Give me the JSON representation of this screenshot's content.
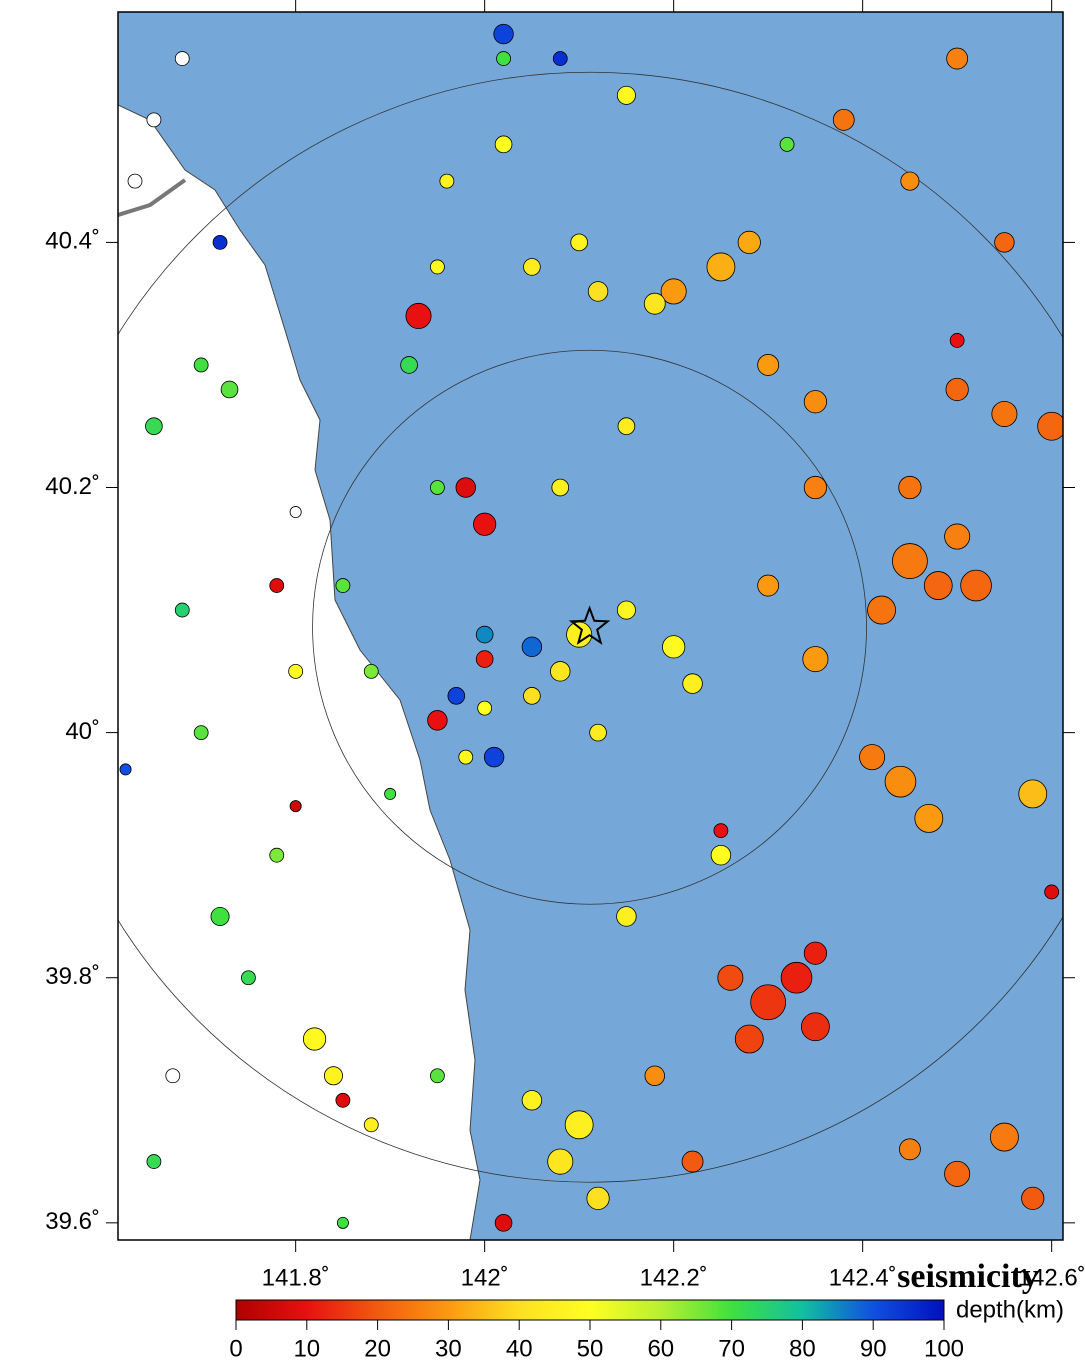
{
  "chart_data": {
    "type": "map",
    "title": "seismicity",
    "colorbar_label": "depth(km)",
    "xlim": [
      141.612,
      142.612
    ],
    "ylim": [
      39.586,
      40.588
    ],
    "xticks": [
      {
        "value": 141.8,
        "label": "141.8˚"
      },
      {
        "value": 142,
        "label": "142˚"
      },
      {
        "value": 142.2,
        "label": "142.2˚"
      },
      {
        "value": 142.4,
        "label": "142.4˚"
      },
      {
        "value": 142.6,
        "label": "142.6˚"
      }
    ],
    "yticks": [
      {
        "value": 39.6,
        "label": "39.6˚"
      },
      {
        "value": 39.8,
        "label": "39.8˚"
      },
      {
        "value": 40,
        "label": "40˚"
      },
      {
        "value": 40.2,
        "label": "40.2˚"
      },
      {
        "value": 40.4,
        "label": "40.4˚"
      }
    ],
    "colorbar_lim": [
      0,
      100
    ],
    "colorbar_ticks": [
      0,
      10,
      20,
      30,
      40,
      50,
      60,
      70,
      80,
      90,
      100
    ],
    "colormap": [
      {
        "value": 0,
        "color": "#b00000"
      },
      {
        "value": 10,
        "color": "#e81010"
      },
      {
        "value": 20,
        "color": "#f25a10"
      },
      {
        "value": 30,
        "color": "#fb9a10"
      },
      {
        "value": 40,
        "color": "#fde020"
      },
      {
        "value": 50,
        "color": "#ffff20"
      },
      {
        "value": 60,
        "color": "#b8f030"
      },
      {
        "value": 70,
        "color": "#40e040"
      },
      {
        "value": 80,
        "color": "#10c0a0"
      },
      {
        "value": 90,
        "color": "#1050e0"
      },
      {
        "value": 100,
        "color": "#0010c0"
      }
    ],
    "mainshock": {
      "lon": 142.111,
      "lat": 40.086
    },
    "events": [
      [
        142.45,
        40.14,
        25,
        4.5
      ],
      [
        142.48,
        40.12,
        22,
        4
      ],
      [
        142.42,
        40.1,
        24,
        4
      ],
      [
        142.5,
        40.16,
        26,
        3.8
      ],
      [
        142.52,
        40.12,
        22,
        4.2
      ],
      [
        142.44,
        39.96,
        28,
        4.2
      ],
      [
        142.47,
        39.93,
        30,
        4
      ],
      [
        142.41,
        39.98,
        25,
        3.8
      ],
      [
        142.58,
        39.95,
        35,
        4
      ],
      [
        142.6,
        40.25,
        22,
        4
      ],
      [
        142.55,
        40.26,
        24,
        3.8
      ],
      [
        142.5,
        40.28,
        22,
        3.6
      ],
      [
        142.35,
        40.27,
        28,
        3.6
      ],
      [
        142.3,
        40.3,
        30,
        3.5
      ],
      [
        142.25,
        40.38,
        33,
        4
      ],
      [
        142.2,
        40.36,
        30,
        3.8
      ],
      [
        142.28,
        40.4,
        32,
        3.6
      ],
      [
        142.3,
        39.78,
        15,
        4.5
      ],
      [
        142.33,
        39.8,
        12,
        4.2
      ],
      [
        142.28,
        39.75,
        17,
        4
      ],
      [
        142.35,
        39.76,
        14,
        4
      ],
      [
        142.26,
        39.8,
        18,
        3.8
      ],
      [
        142.55,
        39.67,
        25,
        4
      ],
      [
        142.5,
        39.64,
        22,
        3.8
      ],
      [
        142.58,
        39.62,
        20,
        3.6
      ],
      [
        142.45,
        39.66,
        26,
        3.5
      ],
      [
        142.38,
        40.5,
        24,
        3.5
      ],
      [
        142.5,
        40.55,
        26,
        3.5
      ],
      [
        142.45,
        40.45,
        28,
        3.3
      ],
      [
        142.55,
        40.4,
        22,
        3.4
      ],
      [
        142.35,
        40.06,
        30,
        3.8
      ],
      [
        142.3,
        40.12,
        30,
        3.5
      ],
      [
        142.35,
        40.2,
        26,
        3.6
      ],
      [
        142.45,
        40.2,
        24,
        3.6
      ],
      [
        142.22,
        39.65,
        20,
        3.5
      ],
      [
        142.18,
        39.72,
        28,
        3.4
      ],
      [
        142.1,
        40.08,
        45,
        3.8
      ],
      [
        142.08,
        40.05,
        42,
        3.4
      ],
      [
        142.05,
        40.03,
        40,
        3.2
      ],
      [
        142.15,
        40.1,
        47,
        3.3
      ],
      [
        142.12,
        40.0,
        44,
        3.2
      ],
      [
        142.2,
        40.07,
        48,
        3.6
      ],
      [
        142.22,
        40.04,
        45,
        3.4
      ],
      [
        142.0,
        40.02,
        50,
        3.0
      ],
      [
        141.98,
        39.98,
        48,
        3.0
      ],
      [
        142.18,
        40.35,
        42,
        3.5
      ],
      [
        142.12,
        40.36,
        40,
        3.4
      ],
      [
        142.05,
        40.38,
        44,
        3.2
      ],
      [
        141.95,
        40.38,
        48,
        3.0
      ],
      [
        142.1,
        40.4,
        46,
        3.2
      ],
      [
        142.1,
        39.68,
        45,
        4.0
      ],
      [
        142.08,
        39.65,
        42,
        3.8
      ],
      [
        142.12,
        39.62,
        40,
        3.6
      ],
      [
        142.05,
        39.7,
        46,
        3.4
      ],
      [
        142.15,
        39.85,
        45,
        3.4
      ],
      [
        142.25,
        39.9,
        50,
        3.4
      ],
      [
        142.02,
        40.48,
        50,
        3.2
      ],
      [
        142.15,
        40.52,
        48,
        3.3
      ],
      [
        141.96,
        40.45,
        46,
        3.0
      ],
      [
        142.08,
        40.2,
        45,
        3.2
      ],
      [
        142.15,
        40.25,
        44,
        3.2
      ],
      [
        141.82,
        39.75,
        48,
        3.6
      ],
      [
        141.84,
        39.72,
        46,
        3.3
      ],
      [
        141.8,
        40.05,
        50,
        3.0
      ],
      [
        141.88,
        39.68,
        45,
        3.0
      ],
      [
        141.7,
        40.0,
        68,
        3.0
      ],
      [
        141.72,
        39.85,
        70,
        3.3
      ],
      [
        141.75,
        39.8,
        72,
        3.0
      ],
      [
        141.78,
        39.9,
        65,
        3.0
      ],
      [
        141.7,
        40.3,
        70,
        3.0
      ],
      [
        141.73,
        40.28,
        68,
        3.2
      ],
      [
        141.65,
        40.25,
        72,
        3.2
      ],
      [
        141.68,
        40.1,
        75,
        3.0
      ],
      [
        141.85,
        40.12,
        68,
        3.0
      ],
      [
        141.88,
        40.05,
        65,
        3.0
      ],
      [
        141.9,
        39.95,
        70,
        2.8
      ],
      [
        141.92,
        40.3,
        72,
        3.2
      ],
      [
        141.95,
        40.2,
        68,
        3.0
      ],
      [
        141.65,
        39.65,
        72,
        3.0
      ],
      [
        141.85,
        39.6,
        70,
        2.8
      ],
      [
        142.02,
        40.55,
        70,
        3.0
      ],
      [
        141.95,
        39.72,
        68,
        3.0
      ],
      [
        142.32,
        40.48,
        68,
        3.0
      ],
      [
        141.93,
        40.34,
        10,
        3.8
      ],
      [
        142.0,
        40.17,
        10,
        3.6
      ],
      [
        141.98,
        40.2,
        8,
        3.4
      ],
      [
        141.95,
        40.01,
        10,
        3.4
      ],
      [
        141.78,
        40.12,
        8,
        3.0
      ],
      [
        141.8,
        39.94,
        5,
        2.8
      ],
      [
        141.85,
        39.7,
        8,
        3.0
      ],
      [
        142.35,
        39.82,
        12,
        3.6
      ],
      [
        142.25,
        39.92,
        10,
        3.0
      ],
      [
        142.02,
        39.6,
        8,
        3.2
      ],
      [
        142.5,
        40.32,
        10,
        3.0
      ],
      [
        142.6,
        39.87,
        8,
        3.0
      ],
      [
        142.0,
        40.06,
        12,
        3.2
      ],
      [
        142.02,
        40.57,
        92,
        3.4
      ],
      [
        142.08,
        40.55,
        95,
        3.0
      ],
      [
        141.97,
        40.03,
        92,
        3.2
      ],
      [
        142.01,
        39.98,
        92,
        3.4
      ],
      [
        141.72,
        40.4,
        95,
        3.0
      ],
      [
        142.05,
        40.07,
        88,
        3.4
      ],
      [
        141.62,
        39.97,
        90,
        2.8
      ],
      [
        142.0,
        40.08,
        85,
        3.2
      ],
      [
        141.65,
        40.5,
        110,
        3.0
      ],
      [
        141.63,
        40.45,
        120,
        3.0
      ],
      [
        141.68,
        40.55,
        105,
        3.0
      ],
      [
        141.67,
        39.72,
        110,
        3.0
      ],
      [
        141.8,
        40.18,
        115,
        2.8
      ]
    ]
  }
}
